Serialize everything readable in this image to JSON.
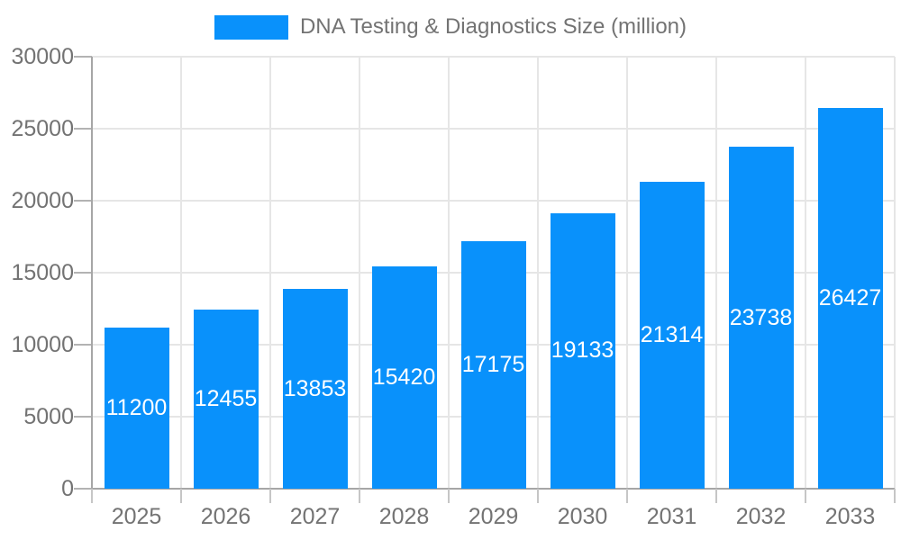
{
  "colors": {
    "bar": "#0991fb",
    "axis_text": "#737373",
    "gridline": "#e6e6e6",
    "axis_line": "#a6a6a6",
    "value_label": "#ffffff",
    "background": "#ffffff"
  },
  "chart_data": {
    "type": "bar",
    "title": "DNA Testing & Diagnostics Size (million)",
    "legend": {
      "label": "DNA Testing & Diagnostics Size (million)",
      "position": "top-center",
      "swatch_color": "#0991fb"
    },
    "categories": [
      "2025",
      "2026",
      "2027",
      "2028",
      "2029",
      "2030",
      "2031",
      "2032",
      "2033"
    ],
    "values": [
      11200,
      12455,
      13853,
      15420,
      17175,
      19133,
      21314,
      23738,
      26427
    ],
    "xlabel": "",
    "ylabel": "",
    "ylim": [
      0,
      30000
    ],
    "yticks": [
      0,
      5000,
      10000,
      15000,
      20000,
      25000,
      30000
    ],
    "grid": true,
    "value_label_position": "inside-center"
  }
}
